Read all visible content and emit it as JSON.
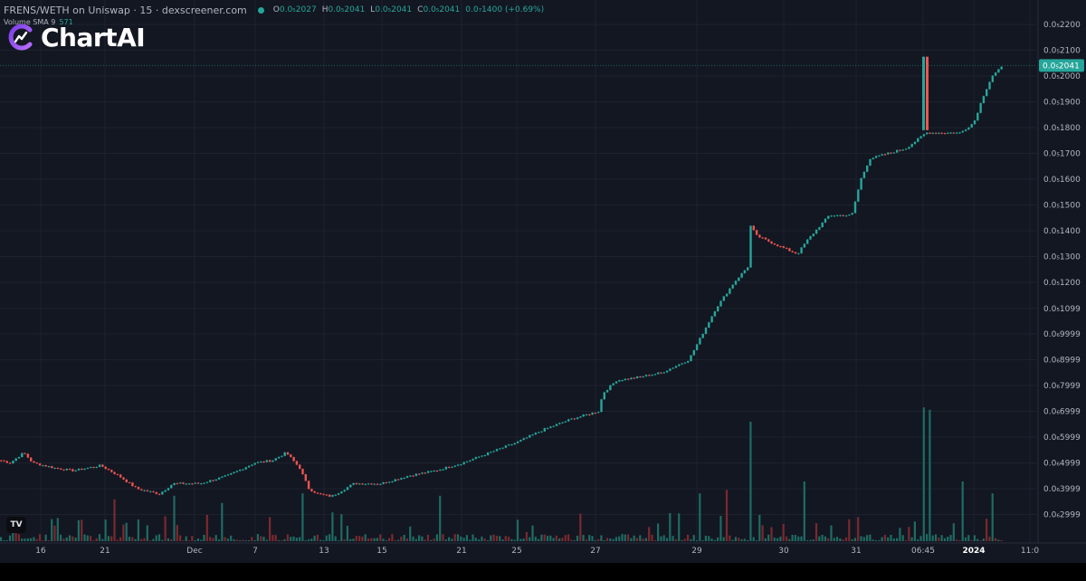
{
  "header": {
    "symbol": "FRENS/WETH on Uniswap · 15 · dexscreener.com",
    "open_key": "O",
    "open": "0.0₅2027",
    "high_key": "H",
    "high": "0.0₅2041",
    "low_key": "L",
    "low": "0.0₅2041",
    "close_key": "C",
    "close": "0.0₅2041",
    "change": "0.0₇1400 (+0.69%)"
  },
  "volume": {
    "label": "Volume SMA 9",
    "value": "571"
  },
  "logo": {
    "text": "ChartAI"
  },
  "badge": {
    "text": "TV"
  },
  "colors": {
    "background": "#131722",
    "up": "#26a69a",
    "down": "#ef5350",
    "grid": "#1e222d",
    "axis_text": "#b2b5be"
  },
  "chart_data": {
    "type": "candlestick",
    "x_tick_labels": [
      "16",
      "21",
      "Dec",
      "7",
      "13",
      "15",
      "21",
      "25",
      "27",
      "29",
      "30",
      "31",
      "06:45",
      "2024",
      "11:0"
    ],
    "y_tick_labels": [
      "0.0₅2200",
      "0.0₅2100",
      "0.0₅2000",
      "0.0₅1900",
      "0.0₅1800",
      "0.0₅1700",
      "0.0₅1600",
      "0.0₅1500",
      "0.0₅1400",
      "0.0₅1300",
      "0.0₅1200",
      "0.0₅1099",
      "0.0₆9999",
      "0.0₆8999",
      "0.0₆7999",
      "0.0₆6999",
      "0.0₆5999",
      "0.0₆4999",
      "0.0₆3999",
      "0.0₆2999"
    ],
    "y_tick_values": [
      0.22,
      0.21,
      0.2,
      0.19,
      0.18,
      0.17,
      0.16,
      0.15,
      0.14,
      0.13,
      0.12,
      0.1099,
      0.09999,
      0.08999,
      0.07999,
      0.06999,
      0.05999,
      0.04999,
      0.03999,
      0.02999
    ],
    "y_unit_note": "prices in units of 0.0000 (values ×1e-4)",
    "ylim": [
      0.02,
      0.225
    ],
    "last_price_label": "0.0₅2041",
    "last_price": 0.2041,
    "close_path_keypoints": [
      [
        0,
        0.051
      ],
      [
        10,
        0.05
      ],
      [
        25,
        0.054
      ],
      [
        35,
        0.05
      ],
      [
        60,
        0.048
      ],
      [
        80,
        0.047
      ],
      [
        110,
        0.049
      ],
      [
        130,
        0.045
      ],
      [
        150,
        0.04
      ],
      [
        175,
        0.038
      ],
      [
        190,
        0.042
      ],
      [
        220,
        0.042
      ],
      [
        250,
        0.045
      ],
      [
        280,
        0.05
      ],
      [
        300,
        0.051
      ],
      [
        315,
        0.054
      ],
      [
        330,
        0.048
      ],
      [
        340,
        0.04
      ],
      [
        350,
        0.038
      ],
      [
        365,
        0.037
      ],
      [
        390,
        0.042
      ],
      [
        420,
        0.042
      ],
      [
        450,
        0.045
      ],
      [
        480,
        0.047
      ],
      [
        510,
        0.05
      ],
      [
        540,
        0.054
      ],
      [
        570,
        0.058
      ],
      [
        600,
        0.063
      ],
      [
        630,
        0.067
      ],
      [
        660,
        0.07
      ],
      [
        665,
        0.077
      ],
      [
        680,
        0.082
      ],
      [
        700,
        0.083
      ],
      [
        730,
        0.085
      ],
      [
        760,
        0.09
      ],
      [
        775,
        0.1
      ],
      [
        790,
        0.11
      ],
      [
        810,
        0.12
      ],
      [
        825,
        0.126
      ],
      [
        828,
        0.142
      ],
      [
        835,
        0.138
      ],
      [
        860,
        0.134
      ],
      [
        880,
        0.131
      ],
      [
        890,
        0.136
      ],
      [
        905,
        0.142
      ],
      [
        915,
        0.146
      ],
      [
        940,
        0.146
      ],
      [
        950,
        0.16
      ],
      [
        960,
        0.168
      ],
      [
        990,
        0.171
      ],
      [
        1000,
        0.172
      ],
      [
        1015,
        0.176
      ],
      [
        1022,
        0.178
      ],
      [
        1035,
        0.178
      ],
      [
        1060,
        0.178
      ],
      [
        1075,
        0.182
      ],
      [
        1085,
        0.192
      ],
      [
        1095,
        0.2
      ],
      [
        1108,
        0.2041
      ]
    ],
    "spike": {
      "x": 1023,
      "high": 0.2075,
      "open": 0.179,
      "close": 0.2075
    },
    "volume_spikes": [
      [
        125,
        0.35
      ],
      [
        192,
        0.38
      ],
      [
        245,
        0.32
      ],
      [
        333,
        0.4
      ],
      [
        485,
        0.38
      ],
      [
        772,
        0.4
      ],
      [
        802,
        0.43
      ],
      [
        827,
        1.0
      ],
      [
        887,
        0.5
      ],
      [
        1021,
        1.12
      ],
      [
        1025,
        1.1
      ],
      [
        1063,
        0.5
      ],
      [
        1096,
        0.4
      ]
    ]
  }
}
